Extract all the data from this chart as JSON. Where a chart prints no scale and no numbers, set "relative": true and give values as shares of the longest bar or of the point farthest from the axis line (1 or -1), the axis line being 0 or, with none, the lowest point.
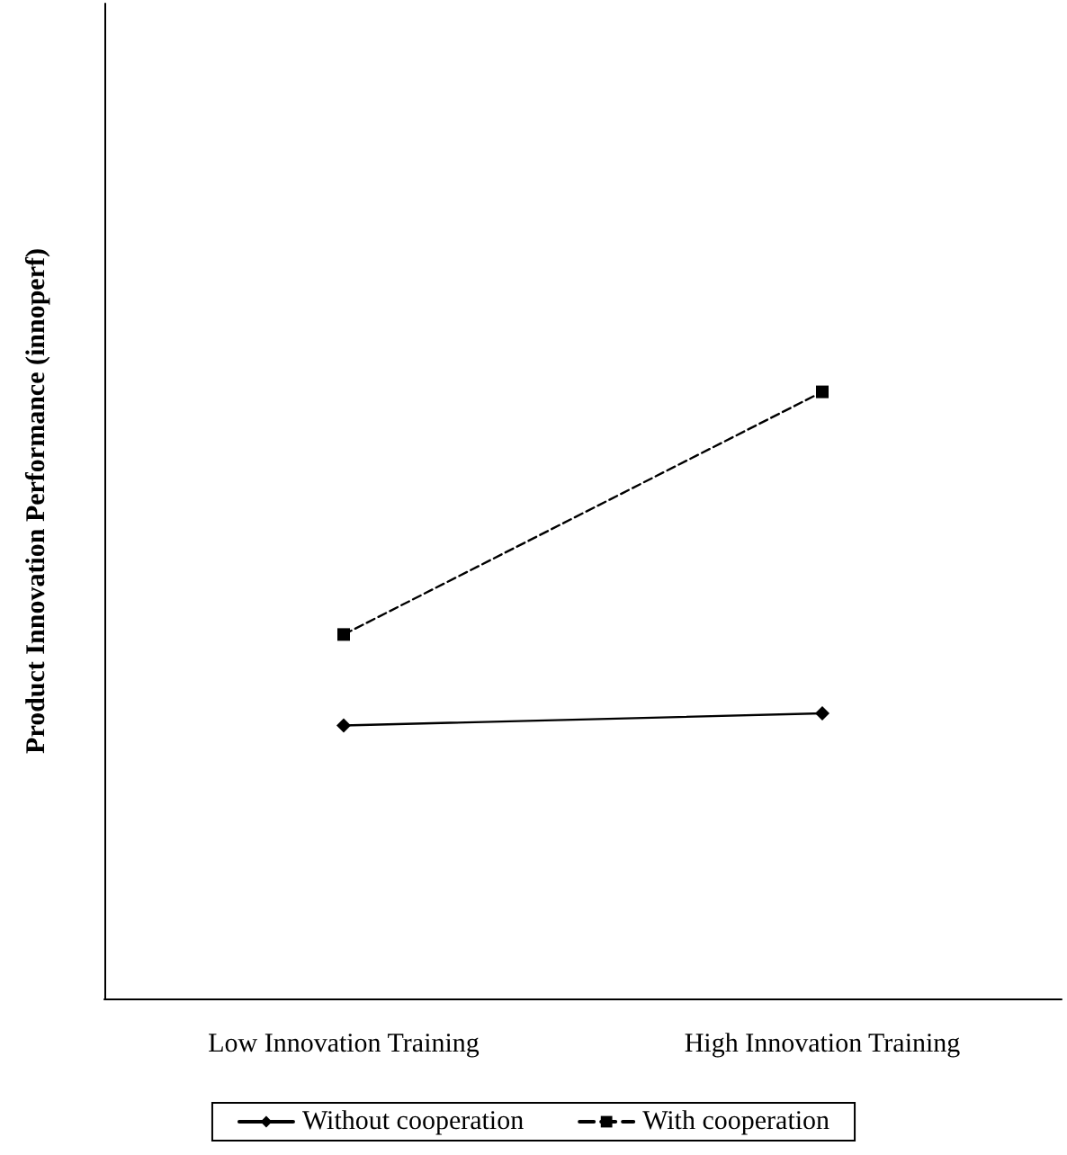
{
  "chart_data": {
    "type": "line",
    "relative": true,
    "ylabel": "Product Innovation Performance (innoperf)",
    "categories": [
      "Low Innovation Training",
      "High Innovation Training"
    ],
    "series": [
      {
        "name": "Without cooperation",
        "color": "#000000",
        "values": [
          0.45,
          0.47
        ],
        "marker": "diamond",
        "line_style": "solid"
      },
      {
        "name": "With cooperation",
        "color": "#000000",
        "values": [
          0.6,
          1
        ],
        "marker": "square",
        "line_style": "dashed"
      }
    ],
    "legend": "bottom",
    "grid": false
  }
}
